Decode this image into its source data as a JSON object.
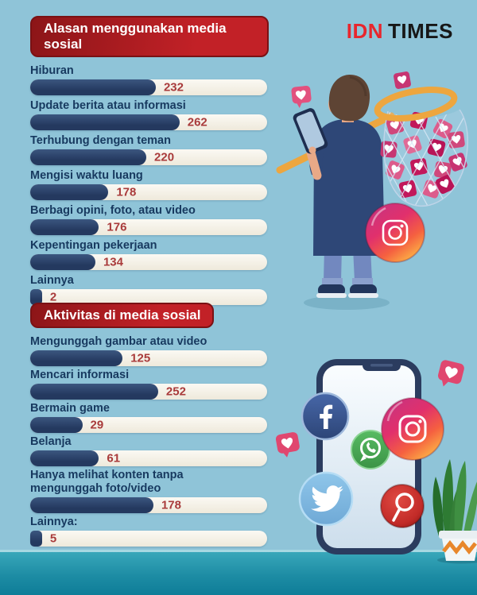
{
  "header": {
    "logo_idn": "IDN",
    "logo_times": "TIMES"
  },
  "chart_data": [
    {
      "type": "bar",
      "orientation": "horizontal",
      "title": "Alasan menggunakan media sosial",
      "categories": [
        "Hiburan",
        "Update berita atau informasi",
        "Terhubung dengan teman",
        "Mengisi waktu luang",
        "Berbagi opini, foto, atau video",
        "Kepentingan pekerjaan",
        "Lainnya"
      ],
      "values": [
        232,
        262,
        220,
        178,
        176,
        134,
        2
      ],
      "bar_fill_pcts": [
        53,
        63,
        49,
        33,
        29,
        27.5,
        5
      ],
      "value_labels": true,
      "grid": false,
      "legend": false
    },
    {
      "type": "bar",
      "orientation": "horizontal",
      "title": "Aktivitas di media sosial",
      "categories": [
        "Mengunggah gambar atau video",
        "Mencari informasi",
        "Bermain game",
        "Belanja",
        "Hanya melihat konten tanpa mengunggah foto/video",
        "Lainnya:"
      ],
      "values": [
        125,
        252,
        29,
        61,
        178,
        5
      ],
      "bar_fill_pcts": [
        39,
        54,
        22,
        29,
        52,
        5
      ],
      "value_labels": true,
      "grid": false,
      "legend": false
    }
  ],
  "colors": {
    "background": "#8FC4D8",
    "floor_top": "#38A7BA",
    "floor_bottom": "#0E7D98",
    "banner_red": "#C22127",
    "banner_dark_red": "#7A1114",
    "bar_track": "#F2EEE4",
    "bar_fill_navy": "#24395F",
    "value_text_red": "#A93B3B",
    "label_text_navy": "#17395F",
    "logo_red": "#E8262D",
    "logo_black": "#171717"
  },
  "illustrations": {
    "top": {
      "description": "person seen from behind holding a smartphone, catching heart-like icons with a net",
      "icons": [
        "like-heart-bubble",
        "net-of-hearts",
        "instagram-badge"
      ]
    },
    "bottom": {
      "description": "smartphone surrounded by floating social media icons and a snake plant",
      "icons": [
        "facebook",
        "whatsapp",
        "instagram",
        "twitter",
        "pinterest",
        "like-heart-bubble"
      ],
      "plant": "snake-plant"
    }
  }
}
